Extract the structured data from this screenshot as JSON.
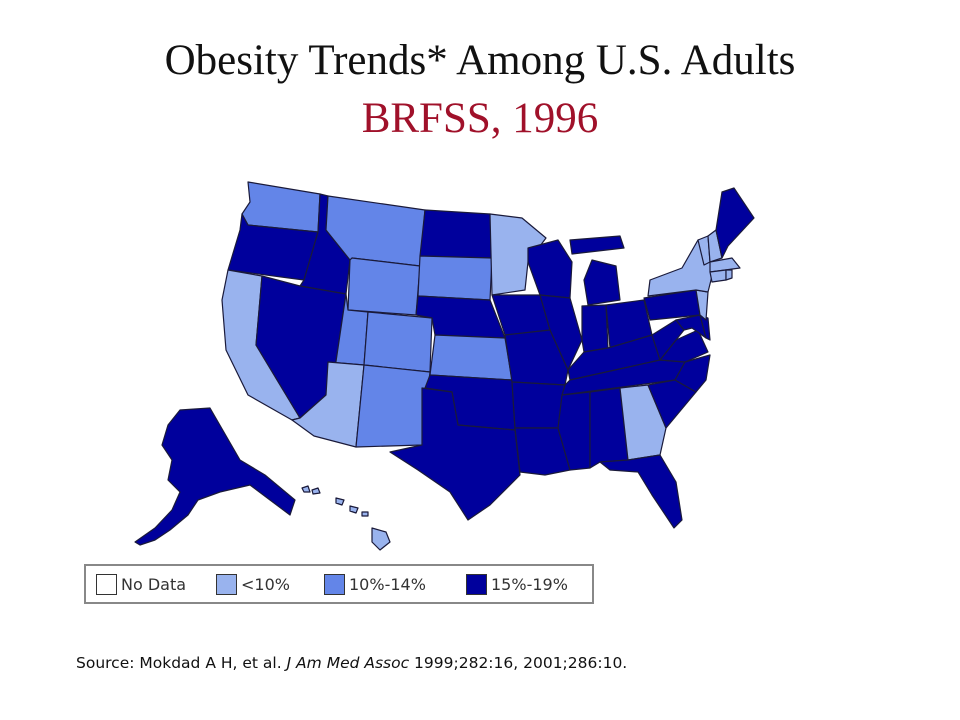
{
  "title": {
    "line1": "Obesity Trends* Among U.S. Adults",
    "line2": "BRFSS, 1996",
    "line2_color": "#a0112a"
  },
  "colors": {
    "no_data": "#ffffff",
    "lt10": "#99b3ee",
    "p10_14": "#6385e8",
    "p15_19": "#00009c",
    "border": "#1a1a3a"
  },
  "legend": [
    {
      "label": "No Data",
      "category": "no_data"
    },
    {
      "label": "<10%",
      "category": "lt10"
    },
    {
      "label": "10%-14%",
      "category": "p10_14"
    },
    {
      "label": "15%-19%",
      "category": "p15_19"
    }
  ],
  "states": {
    "WA": "p10_14",
    "OR": "p15_19",
    "ID": "p15_19",
    "MT": "p10_14",
    "WY": "p10_14",
    "CA": "lt10",
    "NV": "p15_19",
    "UT": "p10_14",
    "AZ": "lt10",
    "CO": "p10_14",
    "NM": "p10_14",
    "ND": "p15_19",
    "SD": "p10_14",
    "NE": "p15_19",
    "KS": "p10_14",
    "OK": "p15_19",
    "TX": "p15_19",
    "MN": "lt10",
    "IA": "p15_19",
    "MO": "p15_19",
    "AR": "p15_19",
    "LA": "p15_19",
    "WI": "p15_19",
    "IL": "p15_19",
    "MI": "p15_19",
    "IN": "p15_19",
    "OH": "p15_19",
    "KY": "p15_19",
    "TN": "p15_19",
    "MS": "p15_19",
    "AL": "p15_19",
    "GA": "lt10",
    "FL": "p15_19",
    "SC": "p15_19",
    "NC": "p15_19",
    "VA": "p15_19",
    "WV": "p15_19",
    "PA": "p15_19",
    "NY": "lt10",
    "ME": "p15_19",
    "VT": "lt10",
    "NH": "lt10",
    "MA": "lt10",
    "RI": "lt10",
    "CT": "lt10",
    "NJ": "lt10",
    "DE": "p15_19",
    "MD": "p15_19",
    "AK": "p15_19",
    "HI": "lt10"
  },
  "source": {
    "prefix": "Source: Mokdad A H, et al. ",
    "journal": "J Am Med Assoc",
    "suffix": " 1999;282:16, 2001;286:10."
  }
}
